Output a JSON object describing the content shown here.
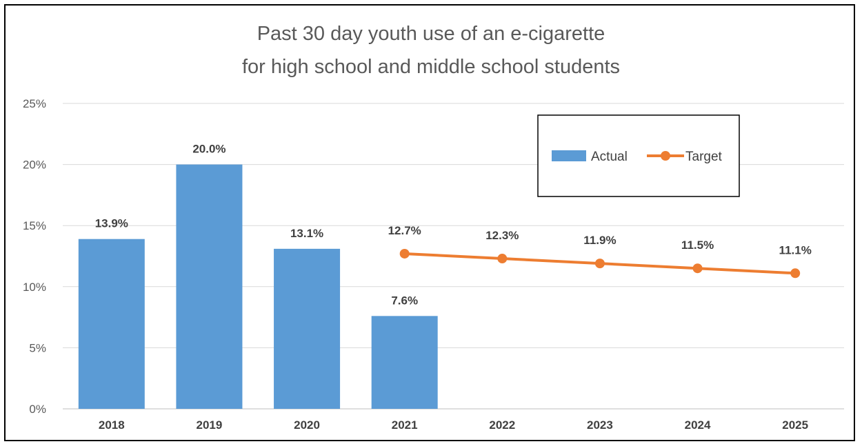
{
  "chart_data": {
    "type": "bar",
    "title": [
      "Past 30 day youth use of an e-cigarette",
      "for high school and middle school students"
    ],
    "categories": [
      "2018",
      "2019",
      "2020",
      "2021",
      "2022",
      "2023",
      "2024",
      "2025"
    ],
    "series": [
      {
        "name": "Actual",
        "type": "bar",
        "color": "#5B9BD5",
        "values": [
          13.9,
          20.0,
          13.1,
          7.6,
          null,
          null,
          null,
          null
        ],
        "labels": [
          "13.9%",
          "20.0%",
          "13.1%",
          "7.6%",
          null,
          null,
          null,
          null
        ]
      },
      {
        "name": "Target",
        "type": "line",
        "color": "#ED7D31",
        "marker": "circle",
        "values": [
          null,
          null,
          null,
          12.7,
          12.3,
          11.9,
          11.5,
          11.1
        ],
        "labels": [
          null,
          null,
          null,
          "12.7%",
          "12.3%",
          "11.9%",
          "11.5%",
          "11.1%"
        ]
      }
    ],
    "ylim": [
      0,
      25
    ],
    "yticks": [
      0,
      5,
      10,
      15,
      20,
      25
    ],
    "ytick_labels": [
      "0%",
      "5%",
      "10%",
      "15%",
      "20%",
      "25%"
    ],
    "grid": true,
    "legend_position": "top-right"
  }
}
